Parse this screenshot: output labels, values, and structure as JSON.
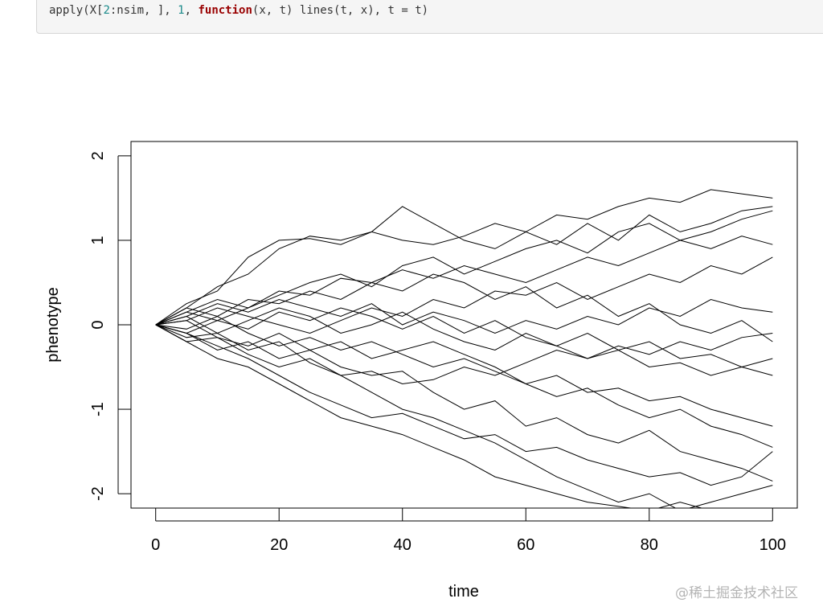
{
  "code": {
    "p1": "apply(X[",
    "n1": "2",
    "p2": ":nsim, ], ",
    "n2": "1",
    "p3": ", ",
    "kw": "function",
    "p4": "(x, t) lines(t, x), t = t)"
  },
  "watermark": "@稀土掘金技术社区",
  "chart_data": {
    "type": "line",
    "xlabel": "time",
    "ylabel": "phenotype",
    "xlim": [
      -4,
      104
    ],
    "ylim": [
      -2.17,
      2.17
    ],
    "xticks": [
      0,
      20,
      40,
      60,
      80,
      100
    ],
    "yticks": [
      -2,
      -1,
      0,
      1,
      2
    ],
    "xtick_labels": [
      "0",
      "20",
      "40",
      "60",
      "80",
      "100"
    ],
    "ytick_labels": [
      "-2",
      "-1",
      "0",
      "1",
      "2"
    ],
    "grid": false,
    "line_color": "#000000",
    "x": [
      0,
      5,
      10,
      15,
      20,
      25,
      30,
      35,
      40,
      45,
      50,
      55,
      60,
      65,
      70,
      75,
      80,
      85,
      90,
      95,
      100
    ],
    "series": [
      {
        "values": [
          0,
          0.2,
          0.45,
          0.6,
          0.9,
          1.05,
          1.0,
          1.1,
          1.0,
          0.95,
          1.05,
          1.2,
          1.1,
          1.3,
          1.25,
          1.4,
          1.5,
          1.45,
          1.6,
          1.55,
          1.5
        ]
      },
      {
        "values": [
          0,
          -0.2,
          -0.4,
          -0.5,
          -0.7,
          -0.9,
          -1.1,
          -1.2,
          -1.3,
          -1.45,
          -1.6,
          -1.8,
          -1.9,
          -2.0,
          -2.1,
          -2.15,
          -2.2,
          -2.1,
          -2.2,
          -2.25,
          -2.3
        ]
      },
      {
        "values": [
          0,
          0.25,
          0.4,
          0.8,
          1.0,
          1.02,
          0.95,
          1.1,
          1.4,
          1.2,
          1.0,
          0.9,
          1.1,
          0.95,
          1.2,
          1.0,
          1.3,
          1.1,
          1.2,
          1.35,
          1.4
        ]
      },
      {
        "values": [
          0,
          0.1,
          -0.1,
          0.05,
          0.2,
          0.1,
          -0.1,
          0,
          0.15,
          -0.05,
          -0.2,
          -0.3,
          -0.1,
          -0.25,
          -0.4,
          -0.3,
          -0.5,
          -0.45,
          -0.6,
          -0.5,
          -0.4
        ]
      },
      {
        "values": [
          0,
          -0.1,
          -0.3,
          -0.2,
          -0.4,
          -0.3,
          -0.5,
          -0.6,
          -0.55,
          -0.8,
          -1.0,
          -0.9,
          -1.2,
          -1.1,
          -1.3,
          -1.4,
          -1.25,
          -1.5,
          -1.6,
          -1.7,
          -1.85
        ]
      },
      {
        "values": [
          0,
          0.15,
          0.3,
          0.2,
          0.35,
          0.5,
          0.6,
          0.45,
          0.7,
          0.8,
          0.6,
          0.75,
          0.9,
          1.0,
          0.85,
          1.1,
          1.2,
          1.0,
          0.9,
          1.05,
          0.95
        ]
      },
      {
        "values": [
          0,
          -0.15,
          -0.1,
          -0.3,
          -0.2,
          -0.45,
          -0.6,
          -0.8,
          -1.0,
          -1.1,
          -1.25,
          -1.4,
          -1.6,
          -1.8,
          -1.95,
          -2.1,
          -2.0,
          -2.2,
          -2.1,
          -2.0,
          -1.9
        ]
      },
      {
        "values": [
          0,
          0.05,
          0.2,
          0.1,
          0,
          -0.1,
          0.05,
          0.2,
          0.1,
          0.3,
          0.2,
          0.4,
          0.35,
          0.5,
          0.3,
          0.45,
          0.6,
          0.5,
          0.7,
          0.6,
          0.8
        ]
      },
      {
        "values": [
          0,
          -0.05,
          0.1,
          -0.1,
          -0.25,
          -0.15,
          -0.3,
          -0.2,
          -0.35,
          -0.5,
          -0.4,
          -0.55,
          -0.7,
          -0.6,
          -0.8,
          -0.75,
          -0.9,
          -0.85,
          -1.0,
          -1.1,
          -1.2
        ]
      },
      {
        "values": [
          0,
          0.2,
          0.1,
          0.3,
          0.25,
          0.4,
          0.3,
          0.5,
          0.65,
          0.55,
          0.7,
          0.6,
          0.5,
          0.65,
          0.8,
          0.7,
          0.85,
          1.0,
          1.1,
          1.25,
          1.35
        ]
      },
      {
        "values": [
          0,
          -0.2,
          -0.15,
          -0.35,
          -0.5,
          -0.4,
          -0.6,
          -0.55,
          -0.7,
          -0.65,
          -0.5,
          -0.6,
          -0.45,
          -0.3,
          -0.4,
          -0.25,
          -0.35,
          -0.2,
          -0.3,
          -0.15,
          -0.1
        ]
      },
      {
        "values": [
          0,
          0.1,
          0.25,
          0.15,
          0.3,
          0.2,
          0.1,
          0.25,
          0.0,
          0.15,
          0.05,
          -0.1,
          0.05,
          -0.05,
          0.1,
          0,
          0.2,
          0.1,
          0.3,
          0.2,
          0.15
        ]
      },
      {
        "values": [
          0,
          -0.1,
          -0.25,
          -0.4,
          -0.6,
          -0.8,
          -0.95,
          -1.1,
          -1.05,
          -1.2,
          -1.35,
          -1.3,
          -1.5,
          -1.45,
          -1.6,
          -1.7,
          -1.8,
          -1.75,
          -1.9,
          -1.8,
          -1.5
        ]
      },
      {
        "values": [
          0,
          0.15,
          0.05,
          0.2,
          0.4,
          0.35,
          0.55,
          0.5,
          0.4,
          0.6,
          0.5,
          0.3,
          0.45,
          0.2,
          0.35,
          0.1,
          0.25,
          0.0,
          -0.1,
          0.05,
          -0.2
        ]
      },
      {
        "values": [
          0,
          -0.1,
          0.05,
          -0.05,
          0.15,
          0.05,
          0.2,
          0.1,
          -0.05,
          0.1,
          -0.1,
          0.05,
          -0.15,
          -0.25,
          -0.1,
          -0.3,
          -0.2,
          -0.4,
          -0.35,
          -0.5,
          -0.6
        ]
      },
      {
        "values": [
          0,
          0.05,
          -0.15,
          -0.25,
          -0.1,
          -0.3,
          -0.2,
          -0.4,
          -0.3,
          -0.2,
          -0.35,
          -0.5,
          -0.7,
          -0.85,
          -0.75,
          -0.95,
          -1.1,
          -1.0,
          -1.2,
          -1.3,
          -1.45
        ]
      }
    ]
  }
}
